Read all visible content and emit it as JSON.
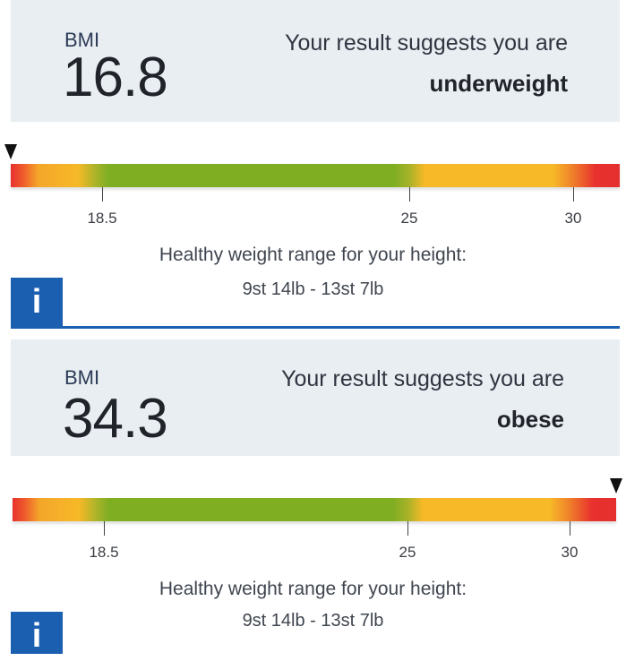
{
  "results": [
    {
      "bmi_label": "BMI",
      "bmi_value": "16.8",
      "suggestion": "Your result suggests you are",
      "category": "underweight",
      "marker_position": 0.0,
      "healthy_title": "Healthy weight range for your height:",
      "healthy_range": "9st 14lb - 13st 7lb",
      "info_icon": "i"
    },
    {
      "bmi_label": "BMI",
      "bmi_value": "34.3",
      "suggestion": "Your result suggests you are",
      "category": "obese",
      "marker_position": 1.0,
      "healthy_title": "Healthy weight range for your height:",
      "healthy_range": "9st 14lb - 13st 7lb",
      "info_icon": "i"
    }
  ],
  "scale": {
    "ticks": [
      "18.5",
      "25",
      "30"
    ]
  },
  "colors": {
    "underweight": "#f7b928",
    "healthy": "#7fae23",
    "overweight": "#f7b928",
    "obese": "#e8312e",
    "info_blue": "#1a5fb0"
  }
}
